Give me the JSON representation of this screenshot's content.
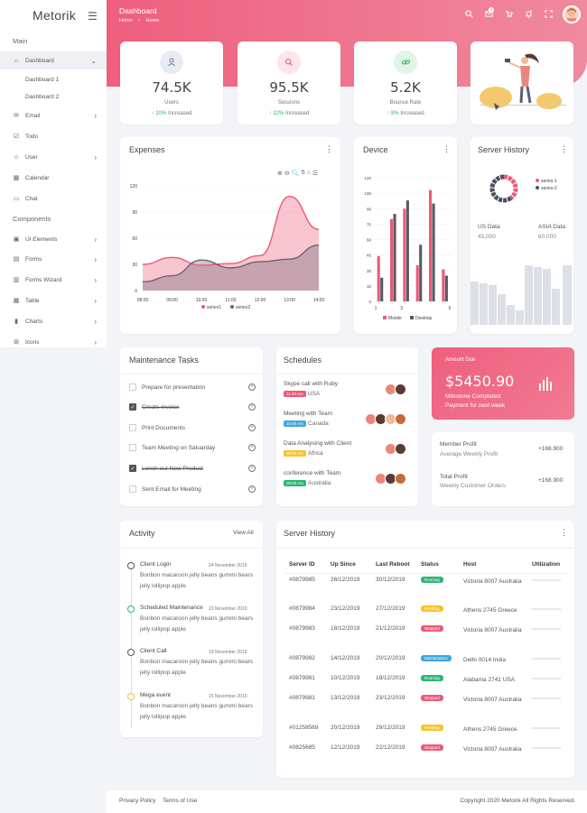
{
  "sidebar": {
    "brand": "Metorik",
    "section_main": "Main",
    "section_components": "Components",
    "items": [
      {
        "label": "Dashboard",
        "icon": "home-icon"
      },
      {
        "label": "Email",
        "icon": "mail-icon"
      },
      {
        "label": "Todo",
        "icon": "check-square-icon"
      },
      {
        "label": "User",
        "icon": "user-icon"
      },
      {
        "label": "Calendar",
        "icon": "calendar-icon"
      },
      {
        "label": "Chat",
        "icon": "chat-icon"
      },
      {
        "label": "UI Elements",
        "icon": "box-icon"
      },
      {
        "label": "Forms",
        "icon": "form-icon"
      },
      {
        "label": "Forms Wizard",
        "icon": "wizard-icon"
      },
      {
        "label": "Table",
        "icon": "table-icon"
      },
      {
        "label": "Charts",
        "icon": "bar-chart-icon"
      },
      {
        "label": "Icons",
        "icon": "grid-icon"
      }
    ],
    "sub_items": [
      "Dashboard 1",
      "Dashboard 2"
    ]
  },
  "header": {
    "title": "Dashboard",
    "breadcrumb_home": "Home",
    "breadcrumb_sep": "›",
    "breadcrumb_current": "Home",
    "notification_count": "3",
    "gradient_start": "#ee5f7d",
    "gradient_end": "#f08a9e"
  },
  "stats": [
    {
      "value": "74.5K",
      "label": "Users",
      "delta": "10%",
      "suffix": "Increased",
      "icon": "user-icon",
      "icon_bg": "#e8ecf2",
      "icon_color": "#6c7a8f"
    },
    {
      "value": "95.5K",
      "label": "Sessions",
      "delta": "22%",
      "suffix": "Increased",
      "icon": "search-icon",
      "icon_bg": "#fde6e9",
      "icon_color": "#ec5a77"
    },
    {
      "value": "5.2K",
      "label": "Bounce Rate",
      "delta": "8%",
      "suffix": "Increased",
      "icon": "link-icon",
      "icon_bg": "#dff5e6",
      "icon_color": "#2bb673"
    }
  ],
  "expenses": {
    "title": "Expenses"
  },
  "device": {
    "title": "Device"
  },
  "server_donut": {
    "title": "Server History",
    "series": [
      "series-1",
      "series-2"
    ],
    "us_label": "US Data",
    "us_value": "45,000",
    "asia_label": "ASIA Data",
    "asia_value": "60,000"
  },
  "maintenance": {
    "title": "Maintenance Tasks",
    "tasks": [
      {
        "text": "Prepare for presentation",
        "done": false
      },
      {
        "text": "Create invoice",
        "done": true
      },
      {
        "text": "Print Documents",
        "done": false
      },
      {
        "text": "Team Meeting on Satuarday",
        "done": false
      },
      {
        "text": "Lunch our New Product",
        "done": true
      },
      {
        "text": "Sent Email for Meeting",
        "done": false
      }
    ]
  },
  "schedules": {
    "title": "Schedules",
    "items": [
      {
        "title": "Skype call with Ruby",
        "time": "11:45 Am",
        "place": "USA",
        "color": "#ec5a77"
      },
      {
        "title": "Meeting with Team",
        "time": "10:50 Am",
        "place": "Canada",
        "color": "#3ea8de"
      },
      {
        "title": "Data Analysing with Client",
        "time": "08:00 Am",
        "place": "Africa",
        "color": "#f5c32c"
      },
      {
        "title": "conference with Team",
        "time": "09:00 Am",
        "place": "Australia",
        "color": "#2bb673"
      }
    ]
  },
  "amount_due": {
    "label": "Amount Due",
    "value": "$5450.90",
    "line1": "Milestone Completed",
    "line2": "Payment for next week"
  },
  "profits": [
    {
      "title": "Member Profit",
      "sub": "Average Weekly Profit",
      "value": "+168.900"
    },
    {
      "title": "Total Profit",
      "sub": "Weekly Customer Orders",
      "value": "+168.900"
    }
  ],
  "activity": {
    "title": "Activity",
    "view_all": "View All",
    "items": [
      {
        "title": "Client Login",
        "date": "24 November 2019",
        "body": "Bonbon macaroon jelly beans gummi bears jelly lollipop apple",
        "dot": "#555"
      },
      {
        "title": "Scheduled Maintenance",
        "date": "23 November 2019",
        "body": "Bonbon macaroon jelly beans gummi bears jelly lollipop apple",
        "dot": "#2bb673"
      },
      {
        "title": "Client Call",
        "date": "19 November 2019",
        "body": "Bonbon macaroon jelly beans gummi bears jelly lollipop apple",
        "dot": "#555"
      },
      {
        "title": "Mega event",
        "date": "15 November 2019",
        "body": "Bonbon macaroon jelly beans gummi bears jelly lollipop apple",
        "dot": "#f5c32c"
      }
    ]
  },
  "server_table": {
    "title": "Server History",
    "columns": [
      "Server ID",
      "Up Since",
      "Last Reboot",
      "Status",
      "Host",
      "Utilization"
    ],
    "rows": [
      {
        "id": "#0879985",
        "up": "26/12/2019",
        "reboot": "30/12/2019",
        "status": "Running",
        "status_color": "#2bb673",
        "host": "Victoria 8007 Australia"
      },
      {
        "id": "#0879984",
        "up": "23/12/2019",
        "reboot": "27/12/2019",
        "status": "Pending",
        "status_color": "#f5c32c",
        "host": "Athens 2745 Greece"
      },
      {
        "id": "#0879983",
        "up": "18/12/2019",
        "reboot": "21/12/2019",
        "status": "Stopped",
        "status_color": "#ec5a77",
        "host": "Victoria 8007 Australia"
      },
      {
        "id": "#0879982",
        "up": "14/12/2019",
        "reboot": "20/12/2019",
        "status": "Maintenance",
        "status_color": "#3ea8de",
        "host": "Delhi 0014 India"
      },
      {
        "id": "#0879981",
        "up": "10/12/2019",
        "reboot": "18/12/2019",
        "status": "Running",
        "status_color": "#2bb673",
        "host": "Alabama 2741 USA"
      },
      {
        "id": "#0879981",
        "up": "13/12/2019",
        "reboot": "23/12/2019",
        "status": "Stopped",
        "status_color": "#ec5a77",
        "host": "Victoria 8007 Australia"
      },
      {
        "id": "#01258569",
        "up": "20/12/2019",
        "reboot": "29/12/2019",
        "status": "Pending",
        "status_color": "#f5c32c",
        "host": "Athens 2745 Greece"
      },
      {
        "id": "#0825685",
        "up": "12/12/2019",
        "reboot": "22/12/2019",
        "status": "Stopped",
        "status_color": "#ec5a77",
        "host": "Victoria 8007 Australia"
      }
    ]
  },
  "footer": {
    "privacy": "Privacy Policy",
    "terms": "Terms of Use",
    "copyright": "Copyright 2020 Metorik All Rights Reserved."
  },
  "chart_data": [
    {
      "type": "area",
      "x": [
        "08:00",
        "09:00",
        "10:00",
        "11:00",
        "12:00",
        "13:00",
        "14:00"
      ],
      "series": [
        {
          "name": "series1",
          "values": [
            30,
            38,
            29,
            31,
            40,
            108,
            70
          ]
        },
        {
          "name": "series2",
          "values": [
            10,
            17,
            35,
            26,
            33,
            36,
            52
          ]
        }
      ],
      "ylim": [
        0,
        120
      ],
      "yticks": [
        0,
        30,
        60,
        90,
        120
      ],
      "colors": [
        "#ec5a77",
        "#6b6570"
      ]
    },
    {
      "type": "bar",
      "categories": [
        1,
        2,
        3,
        4,
        5,
        6
      ],
      "xticks": [
        1,
        3,
        6
      ],
      "series": [
        {
          "name": "Mobile",
          "values": [
            44,
            80,
            90,
            35,
            108,
            31
          ]
        },
        {
          "name": "Desktop",
          "values": [
            23,
            85,
            98,
            55,
            95,
            25
          ]
        }
      ],
      "ylim": [
        0,
        120
      ],
      "yticks": [
        0,
        15,
        30,
        45,
        60,
        75,
        90,
        105,
        120
      ],
      "colors": [
        "#ec5a77",
        "#555b66"
      ]
    },
    {
      "type": "pie",
      "labels": [
        "series-1",
        "series-2"
      ],
      "values": [
        40,
        60
      ],
      "colors": [
        "#ec5a77",
        "#4b515e"
      ]
    }
  ]
}
